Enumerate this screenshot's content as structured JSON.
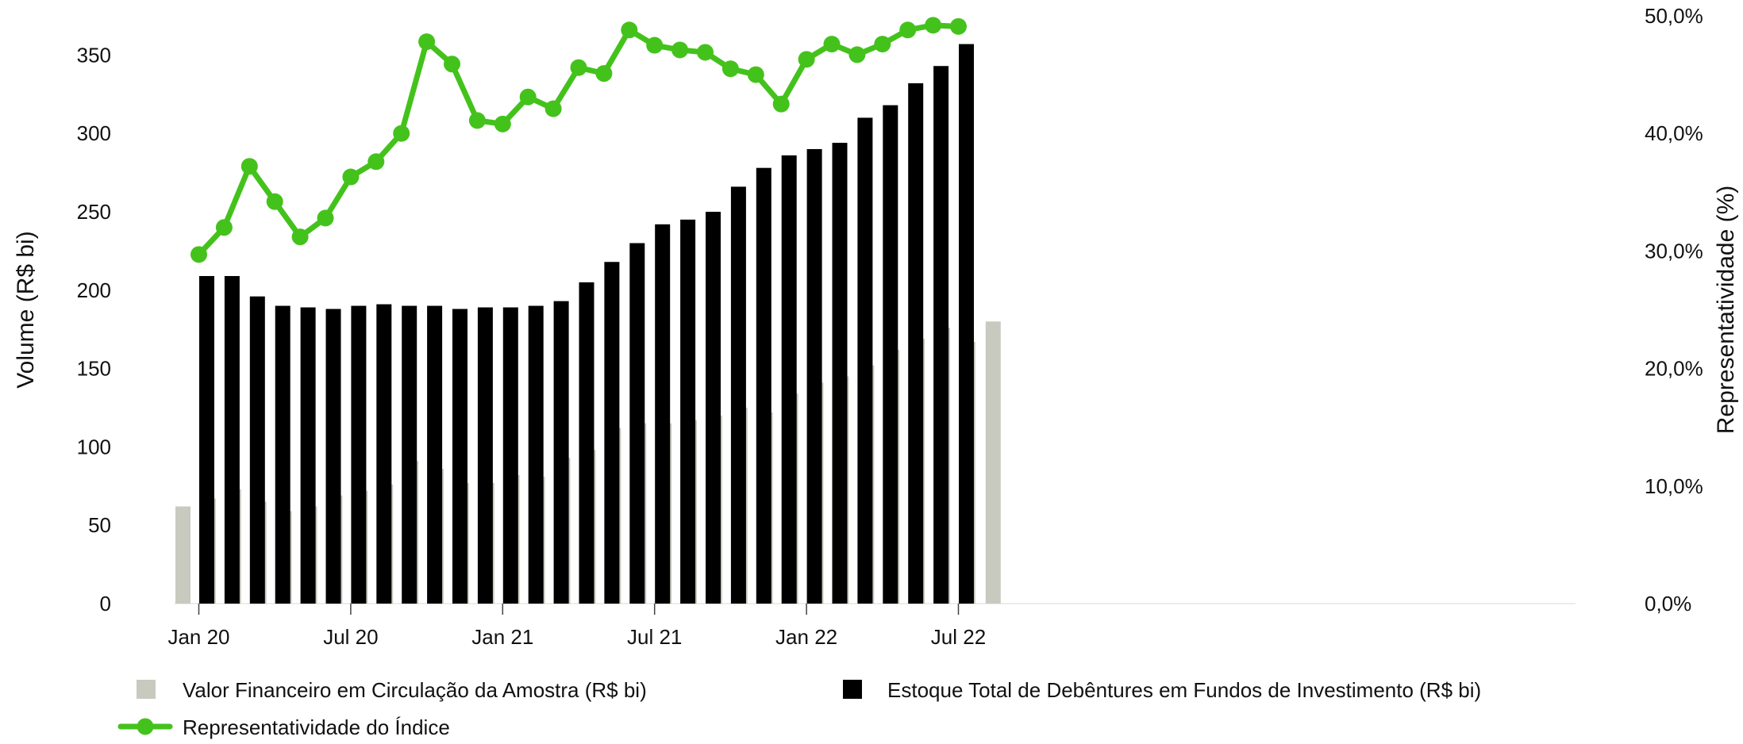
{
  "chart_data": {
    "type": "bar",
    "title": "",
    "ylabel": "Volume (R$ bi)",
    "y2label": "Representatividade (%)",
    "ylim": [
      0,
      375
    ],
    "y2lim": [
      0,
      50
    ],
    "yticks": [
      0,
      50,
      100,
      150,
      200,
      250,
      300,
      350
    ],
    "y2ticks": [
      "0,0%",
      "10,0%",
      "20,0%",
      "30,0%",
      "40,0%",
      "50,0%"
    ],
    "x": [
      "Jan 20",
      "Feb 20",
      "Mar 20",
      "Apr 20",
      "May 20",
      "Jun 20",
      "Jul 20",
      "Aug 20",
      "Sep 20",
      "Oct 20",
      "Nov 20",
      "Dec 20",
      "Jan 21",
      "Feb 21",
      "Mar 21",
      "Apr 21",
      "May 21",
      "Jun 21",
      "Jul 21",
      "Aug 21",
      "Sep 21",
      "Oct 21",
      "Nov 21",
      "Dec 21",
      "Jan 22",
      "Feb 22",
      "Mar 22",
      "Apr 22",
      "May 22",
      "Jun 22",
      "Jul 22",
      "Aug 22",
      "Sep 22"
    ],
    "xtick_labels": [
      "Jan 20",
      "Jul 20",
      "Jan 21",
      "Jul 21",
      "Jan 22",
      "Jul 22"
    ],
    "xtick_indices": [
      0,
      6,
      12,
      18,
      24,
      30
    ],
    "series": [
      {
        "name": "Valor Financeiro em Circulação da Amostra (R$ bi)",
        "kind": "bar",
        "axis": "left",
        "color": "#c8c9bf",
        "values": [
          62,
          67,
          73,
          65,
          59,
          62,
          69,
          72,
          76,
          91,
          86,
          77,
          77,
          82,
          81,
          93,
          98,
          112,
          115,
          115,
          117,
          120,
          125,
          122,
          134,
          141,
          145,
          152,
          162,
          169,
          176,
          167,
          180
        ]
      },
      {
        "name": "Estoque Total de Debêntures em Fundos de Investimento (R$ bi)",
        "kind": "bar",
        "axis": "left",
        "color": "#000000",
        "values": [
          209,
          209,
          196,
          190,
          189,
          188,
          190,
          191,
          190,
          190,
          188,
          189,
          189,
          190,
          193,
          205,
          218,
          230,
          242,
          245,
          250,
          266,
          278,
          286,
          290,
          294,
          310,
          318,
          332,
          343,
          357,
          null,
          null
        ]
      },
      {
        "name": "Representatividade do Índice",
        "kind": "line",
        "axis": "right",
        "color": "#44c21c",
        "values": [
          29.7,
          32.0,
          37.2,
          34.2,
          31.2,
          32.8,
          36.3,
          37.6,
          40.0,
          47.8,
          45.9,
          41.1,
          40.8,
          43.1,
          42.1,
          45.6,
          45.1,
          48.8,
          47.5,
          47.1,
          46.9,
          45.5,
          45.0,
          42.5,
          46.3,
          47.6,
          46.7,
          47.6,
          48.8,
          49.2,
          49.1,
          null,
          null
        ]
      }
    ],
    "legend_position": "bottom",
    "grid": false
  }
}
